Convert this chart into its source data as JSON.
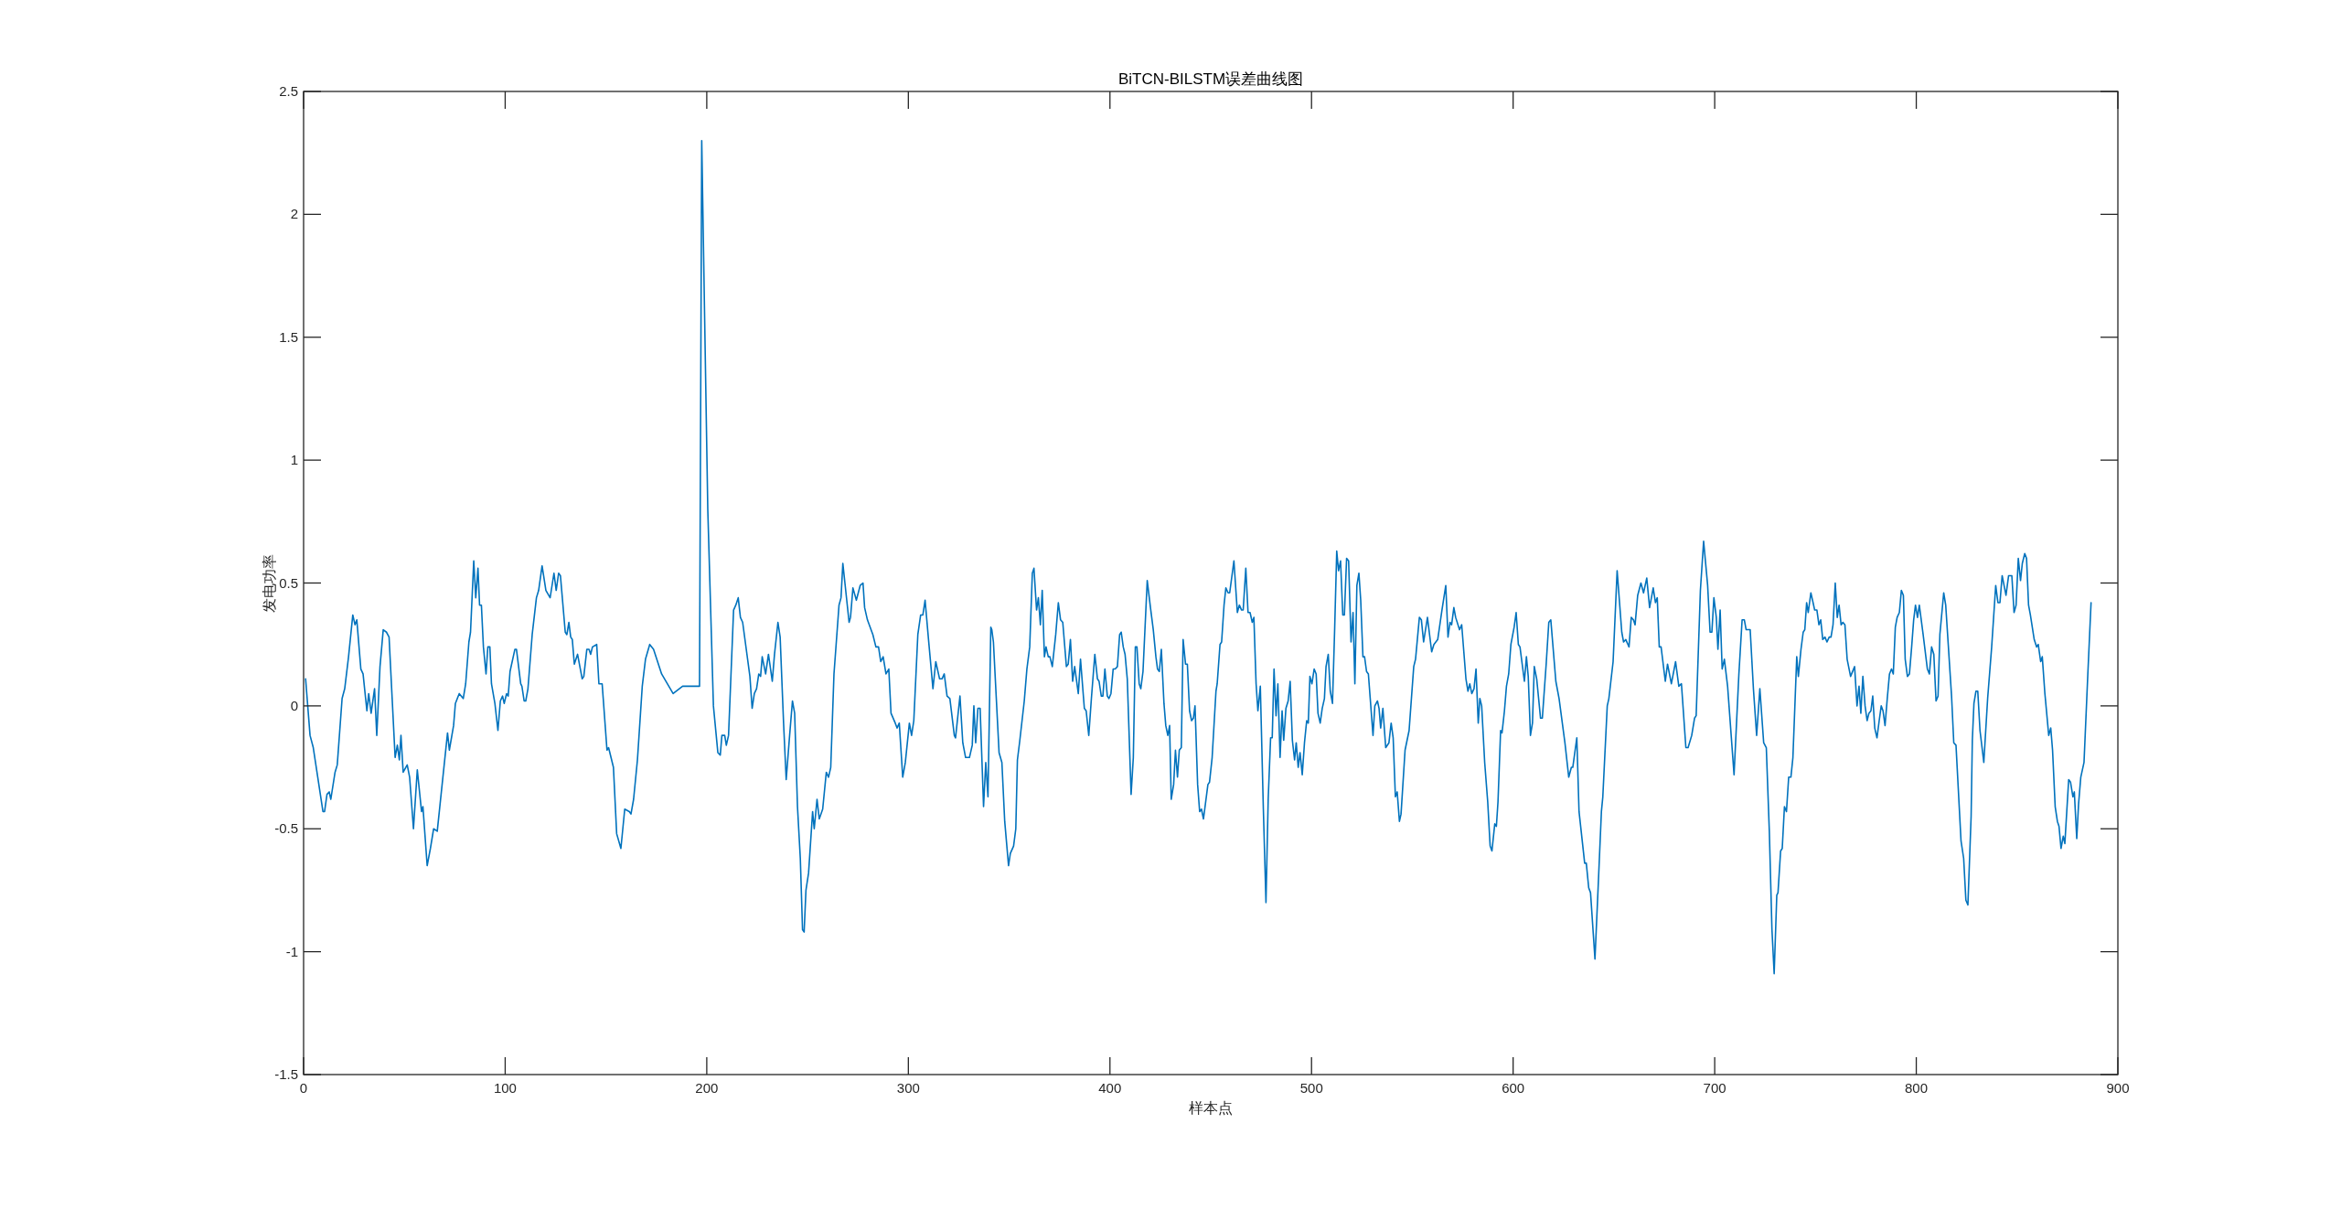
{
  "chart_data": {
    "type": "line",
    "title": "BiTCN-BILSTM误差曲线图",
    "xlabel": "样本点",
    "ylabel": "发电功率",
    "xlim": [
      0,
      900
    ],
    "ylim": [
      -1.5,
      2.5
    ],
    "xticks": [
      0,
      100,
      200,
      300,
      400,
      500,
      600,
      700,
      800,
      900
    ],
    "yticks": [
      -1.5,
      -1,
      -0.5,
      0,
      0.5,
      1,
      1.5,
      2,
      2.5
    ],
    "series": [
      {
        "color": "#0072bd",
        "x": [
          1,
          3.2,
          4.8,
          9.6,
          10.4,
          11.6,
          12.7,
          13.5,
          15.6,
          16.7,
          19.1,
          20.4,
          22.3,
          24.4,
          25.5,
          26.4,
          28.4,
          29.5,
          31.4,
          32.3,
          33.5,
          35.2,
          36.3,
          37.9,
          39.5,
          41.1,
          42.4,
          45.4,
          46.5,
          47.5,
          48.3,
          49.4,
          51.4,
          52.6,
          54.5,
          56.4,
          58.5,
          59.2,
          61.3,
          62.9,
          64.5,
          66.3,
          67.7,
          71.4,
          72.3,
          74.4,
          75.3,
          77.2,
          79.2,
          80.4,
          82,
          82.8,
          84.4,
          85.4,
          86.5,
          87.3,
          88.2,
          89.2,
          90.5,
          91.4,
          92.4,
          93.2,
          94.9,
          96.4,
          97.6,
          98.7,
          99.5,
          100.7,
          101.5,
          102.4,
          104.8,
          105.6,
          107.7,
          108.3,
          109.4,
          110.2,
          111.3,
          113.4,
          115.5,
          116.6,
          118.3,
          120.2,
          122.3,
          124.2,
          125.3,
          126.5,
          127.4,
          129.8,
          130.6,
          131.6,
          132.5,
          133.3,
          134.3,
          135.9,
          138.2,
          139,
          140.5,
          141.6,
          142.4,
          143.3,
          145.4,
          146.5,
          148.1,
          150.5,
          151.3,
          153.7,
          155.3,
          157.4,
          159.3,
          161.6,
          162.4,
          163.7,
          165.6,
          168,
          169.6,
          171.7,
          173.6,
          177.6,
          183.3,
          188,
          196.4,
          197.5,
          200.5,
          203.3,
          205.5,
          206.7,
          207.5,
          208.9,
          209.7,
          210.8,
          213.3,
          214.4,
          215.6,
          216.7,
          217.8,
          221.4,
          222.5,
          223.6,
          224.7,
          225.8,
          226.7,
          227.5,
          229.2,
          230.6,
          232.5,
          233.6,
          235.3,
          236.4,
          238.1,
          239.4,
          241.1,
          242.5,
          243.6,
          245,
          246.4,
          247.5,
          248.3,
          249.2,
          250.5,
          252.5,
          253.3,
          254.7,
          255.8,
          257.5,
          259.3,
          260.4,
          261.5,
          263.1,
          265.6,
          266.6,
          267.5,
          270.6,
          271.3,
          272.5,
          274.2,
          276.1,
          277.5,
          278.3,
          279.7,
          282.4,
          283.9,
          285.2,
          286.3,
          287.5,
          288.9,
          290.3,
          291.4,
          293.5,
          294.4,
          295.5,
          297.2,
          298.5,
          300.5,
          301.6,
          302.7,
          304.7,
          306.1,
          307.2,
          308.3,
          310,
          312.2,
          313.6,
          315.5,
          316.7,
          317.8,
          319.2,
          320.6,
          322.8,
          323.4,
          325.6,
          327,
          328.4,
          330.3,
          331.7,
          332.5,
          333.4,
          334.5,
          335.6,
          337.3,
          338.4,
          339.5,
          340.9,
          341.4,
          342.2,
          345,
          346.4,
          347.8,
          349.7,
          350.6,
          352.2,
          353.3,
          354.1,
          355.3,
          357.5,
          358.8,
          360.2,
          361.5,
          362.3,
          363.6,
          364.5,
          365.5,
          366.4,
          367.5,
          368.3,
          369.4,
          370.2,
          371.4,
          373.1,
          374.4,
          375.5,
          376.6,
          378.4,
          379.3,
          380.4,
          381.5,
          382.5,
          384.3,
          385.4,
          387.3,
          388.2,
          389.5,
          390.8,
          392.5,
          393.8,
          394.6,
          395.7,
          396.5,
          397.5,
          398.7,
          399.5,
          400.5,
          401.6,
          402.6,
          403.7,
          404.8,
          405.6,
          406.6,
          407.5,
          408.6,
          410.5,
          411.6,
          412.6,
          413.4,
          414.5,
          415.3,
          416.4,
          418.5,
          420.1,
          421.5,
          422.8,
          423.6,
          424.5,
          425.5,
          426.8,
          427.7,
          428.7,
          429.6,
          430.4,
          431.6,
          432.5,
          433.5,
          434.4,
          435.4,
          436.3,
          437.5,
          438.4,
          439.5,
          440.5,
          441.4,
          442.2,
          443.5,
          444.5,
          445.4,
          446.4,
          447.5,
          448.6,
          449.4,
          450.7,
          452.6,
          453.2,
          454.6,
          455.4,
          456.6,
          457.5,
          458.6,
          459.4,
          461.5,
          463.2,
          464.2,
          465.3,
          466.1,
          467.4,
          468.5,
          469.5,
          470.6,
          471.4,
          472.5,
          473.4,
          474.6,
          476.1,
          477.4,
          478.5,
          479.7,
          480.5,
          481.4,
          482.4,
          483.3,
          484.4,
          485.4,
          486.2,
          487.3,
          488.4,
          489.4,
          490.5,
          491.6,
          492.4,
          493.4,
          494.3,
          495.4,
          496.5,
          497.6,
          498.4,
          499.2,
          500.2,
          501.3,
          502.3,
          503.2,
          504.3,
          505.3,
          506.4,
          507.2,
          508.3,
          509.3,
          510.4,
          511.5,
          512.5,
          513.4,
          514.4,
          515.5,
          516.3,
          517.4,
          518.4,
          519.6,
          520.6,
          521.5,
          522.5,
          523.5,
          524.4,
          525.5,
          526.3,
          527.3,
          528.2,
          530.5,
          531.4,
          532.7,
          533.5,
          534.3,
          535.4,
          536.8,
          538.4,
          539.5,
          540.5,
          541.6,
          542.5,
          543.6,
          544.4,
          546.4,
          548.4,
          550.7,
          551.6,
          553.5,
          554.5,
          555.6,
          557.5,
          559.6,
          560.7,
          562.6,
          564.7,
          566.6,
          567.7,
          568.7,
          569.5,
          570.6,
          571.5,
          573.4,
          574.5,
          576.6,
          577.6,
          578.5,
          579.5,
          580.6,
          581.6,
          582.7,
          583.5,
          584.4,
          585.9,
          587.4,
          588.6,
          589.5,
          590.9,
          591.7,
          592.5,
          593.8,
          594.5,
          595.7,
          596.7,
          597.8,
          598.9,
          600.5,
          601.5,
          602.6,
          603.4,
          605.6,
          606.6,
          607.5,
          608.6,
          609.6,
          610.5,
          611.7,
          613.6,
          614.5,
          616.4,
          617.7,
          618.7,
          621.2,
          622.8,
          625.7,
          627.6,
          628.9,
          629.6,
          631.6,
          632.7,
          635.5,
          636.3,
          637.5,
          638.4,
          640.6,
          641.9,
          643.8,
          644.5,
          646.7,
          647.5,
          649.6,
          651.6,
          653.9,
          654.8,
          655.9,
          657.5,
          658.6,
          659.7,
          660.5,
          661.8,
          663.4,
          664.7,
          666.3,
          667.7,
          669.5,
          670.6,
          671.5,
          672.5,
          673.4,
          675.5,
          676.6,
          678.5,
          680.6,
          682.2,
          683.5,
          685.7,
          686.8,
          688.6,
          690,
          690.8,
          692.9,
          694.5,
          696.5,
          697.7,
          698.6,
          699.6,
          700.8,
          701.6,
          702.7,
          703.7,
          704.8,
          706.4,
          709.6,
          712,
          713.6,
          714.7,
          715.6,
          717.6,
          719.2,
          720.8,
          722.4,
          724.3,
          725.6,
          727.1,
          728.4,
          729.5,
          730.8,
          731.4,
          732.7,
          733.5,
          734.6,
          735.6,
          736.7,
          737.8,
          738.8,
          740.7,
          741.5,
          742.8,
          743.9,
          744.7,
          745.6,
          746.4,
          747.7,
          748.8,
          749.6,
          750.7,
          751.7,
          752.6,
          753.6,
          754.7,
          755.7,
          756.8,
          757.7,
          758.7,
          759.8,
          760.8,
          761.7,
          762.7,
          763.6,
          764.6,
          765.7,
          767.4,
          769.4,
          770.6,
          771.6,
          772.5,
          773.5,
          774.6,
          775.6,
          776.5,
          777.5,
          778.4,
          779.4,
          780.5,
          781.6,
          782.6,
          783.5,
          784.5,
          785.6,
          786.7,
          787.7,
          788.6,
          789.6,
          790.5,
          791.6,
          792.6,
          793.6,
          794.5,
          795.6,
          796.6,
          797.7,
          798.7,
          799.6,
          800.6,
          801.5,
          803.4,
          805.5,
          806.5,
          807.6,
          808.7,
          809.8,
          810.8,
          811.7,
          813.6,
          814.6,
          817.5,
          818.6,
          819.7,
          822.2,
          823.5,
          824.6,
          825.6,
          827.2,
          827.8,
          828.6,
          829.6,
          830.5,
          831.6,
          833.5,
          835.4,
          837.4,
          839.4,
          840.5,
          841.5,
          842.6,
          844.5,
          845.8,
          847.4,
          848.5,
          849.5,
          850.6,
          851.7,
          852.6,
          853.8,
          854.7,
          855.7,
          856.6,
          858.5,
          859.7,
          860.5,
          861.7,
          862.5,
          863.8,
          865.7,
          866.7,
          867.6,
          868.9,
          870,
          870.8,
          871.8,
          872.9,
          873.7,
          875.6,
          876.5,
          877.7,
          878.4,
          879.6,
          880.5,
          881.6,
          883.2,
          885.1,
          886.7
        ],
        "values": [
          0.11,
          -0.12,
          -0.17,
          -0.43,
          -0.43,
          -0.36,
          -0.35,
          -0.38,
          -0.27,
          -0.24,
          0.03,
          0.07,
          0.2,
          0.37,
          0.33,
          0.35,
          0.15,
          0.13,
          -0.02,
          0.05,
          -0.03,
          0.07,
          -0.12,
          0.16,
          0.31,
          0.3,
          0.28,
          -0.21,
          -0.16,
          -0.22,
          -0.12,
          -0.27,
          -0.24,
          -0.29,
          -0.5,
          -0.26,
          -0.43,
          -0.41,
          -0.65,
          -0.58,
          -0.5,
          -0.51,
          -0.4,
          -0.11,
          -0.18,
          -0.08,
          0.01,
          0.05,
          0.03,
          0.09,
          0.26,
          0.3,
          0.59,
          0.44,
          0.56,
          0.41,
          0.41,
          0.24,
          0.13,
          0.24,
          0.24,
          0.09,
          0.01,
          -0.1,
          0.02,
          0.04,
          0.01,
          0.05,
          0.04,
          0.14,
          0.23,
          0.23,
          0.09,
          0.08,
          0.02,
          0.02,
          0.07,
          0.29,
          0.44,
          0.47,
          0.57,
          0.47,
          0.44,
          0.54,
          0.47,
          0.54,
          0.53,
          0.3,
          0.29,
          0.34,
          0.28,
          0.27,
          0.17,
          0.21,
          0.11,
          0.12,
          0.23,
          0.23,
          0.21,
          0.24,
          0.25,
          0.09,
          0.09,
          -0.18,
          -0.17,
          -0.25,
          -0.52,
          -0.58,
          -0.42,
          -0.43,
          -0.44,
          -0.38,
          -0.22,
          0.08,
          0.19,
          0.25,
          0.23,
          0.13,
          0.05,
          0.08,
          0.08,
          2.3,
          0.8,
          0,
          -0.19,
          -0.2,
          -0.12,
          -0.12,
          -0.16,
          -0.12,
          0.39,
          0.41,
          0.44,
          0.36,
          0.34,
          0.12,
          -0.01,
          0.05,
          0.07,
          0.13,
          0.12,
          0.2,
          0.13,
          0.21,
          0.1,
          0.21,
          0.34,
          0.28,
          -0.07,
          -0.3,
          -0.12,
          0.02,
          -0.03,
          -0.41,
          -0.62,
          -0.91,
          -0.92,
          -0.75,
          -0.68,
          -0.43,
          -0.5,
          -0.38,
          -0.46,
          -0.42,
          -0.27,
          -0.29,
          -0.25,
          0.13,
          0.41,
          0.44,
          0.58,
          0.34,
          0.36,
          0.48,
          0.43,
          0.49,
          0.5,
          0.4,
          0.35,
          0.29,
          0.24,
          0.24,
          0.18,
          0.2,
          0.13,
          0.15,
          -0.03,
          -0.07,
          -0.09,
          -0.07,
          -0.29,
          -0.23,
          -0.07,
          -0.12,
          -0.06,
          0.29,
          0.37,
          0.37,
          0.43,
          0.27,
          0.07,
          0.18,
          0.11,
          0.11,
          0.13,
          0.04,
          0.03,
          -0.12,
          -0.13,
          0.04,
          -0.15,
          -0.21,
          -0.21,
          -0.16,
          0,
          -0.15,
          -0.01,
          -0.01,
          -0.41,
          -0.23,
          -0.37,
          0.32,
          0.31,
          0.26,
          -0.19,
          -0.23,
          -0.47,
          -0.65,
          -0.6,
          -0.57,
          -0.5,
          -0.22,
          -0.14,
          0.02,
          0.15,
          0.24,
          0.54,
          0.56,
          0.39,
          0.44,
          0.33,
          0.47,
          0.2,
          0.24,
          0.2,
          0.2,
          0.16,
          0.29,
          0.42,
          0.35,
          0.34,
          0.16,
          0.17,
          0.27,
          0.1,
          0.16,
          0.05,
          0.19,
          -0.01,
          -0.02,
          -0.12,
          0.03,
          0.21,
          0.11,
          0.1,
          0.04,
          0.04,
          0.15,
          0.04,
          0.03,
          0.05,
          0.15,
          0.15,
          0.16,
          0.29,
          0.3,
          0.24,
          0.21,
          0.11,
          -0.36,
          -0.21,
          0.24,
          0.24,
          0.09,
          0.07,
          0.14,
          0.51,
          0.4,
          0.31,
          0.2,
          0.15,
          0.14,
          0.23,
          0.01,
          -0.08,
          -0.12,
          -0.08,
          -0.38,
          -0.32,
          -0.18,
          -0.29,
          -0.18,
          -0.17,
          0.27,
          0.17,
          0.17,
          -0.02,
          -0.06,
          -0.05,
          0,
          -0.32,
          -0.43,
          -0.42,
          -0.46,
          -0.39,
          -0.32,
          -0.31,
          -0.21,
          0.06,
          0.09,
          0.25,
          0.26,
          0.41,
          0.48,
          0.46,
          0.46,
          0.59,
          0.38,
          0.41,
          0.39,
          0.39,
          0.56,
          0.38,
          0.38,
          0.34,
          0.36,
          0.09,
          -0.02,
          0.08,
          -0.42,
          -0.8,
          -0.38,
          -0.13,
          -0.13,
          0.15,
          -0.04,
          0.09,
          -0.21,
          -0.02,
          -0.14,
          -0.01,
          0.02,
          0.1,
          -0.14,
          -0.22,
          -0.15,
          -0.25,
          -0.19,
          -0.28,
          -0.15,
          -0.06,
          -0.07,
          0.12,
          0.09,
          0.15,
          0.13,
          -0.03,
          -0.07,
          -0.01,
          0.03,
          0.16,
          0.21,
          0.06,
          0.01,
          0.32,
          0.63,
          0.55,
          0.59,
          0.37,
          0.37,
          0.6,
          0.59,
          0.26,
          0.38,
          0.09,
          0.49,
          0.54,
          0.43,
          0.2,
          0.2,
          0.14,
          0.13,
          -0.12,
          0,
          0.02,
          -0.01,
          -0.09,
          -0.01,
          -0.17,
          -0.15,
          -0.07,
          -0.13,
          -0.37,
          -0.35,
          -0.47,
          -0.44,
          -0.18,
          -0.1,
          0.16,
          0.19,
          0.36,
          0.35,
          0.26,
          0.36,
          0.22,
          0.25,
          0.27,
          0.39,
          0.49,
          0.28,
          0.34,
          0.33,
          0.4,
          0.36,
          0.31,
          0.33,
          0.11,
          0.06,
          0.09,
          0.05,
          0.07,
          0.15,
          -0.07,
          0.03,
          0,
          -0.23,
          -0.39,
          -0.57,
          -0.59,
          -0.48,
          -0.49,
          -0.39,
          -0.1,
          -0.11,
          -0.02,
          0.08,
          0.13,
          0.25,
          0.32,
          0.38,
          0.25,
          0.24,
          0.1,
          0.2,
          0.12,
          -0.12,
          -0.07,
          0.16,
          0.11,
          -0.05,
          -0.05,
          0.17,
          0.34,
          0.35,
          0.1,
          0.03,
          -0.15,
          -0.29,
          -0.25,
          -0.25,
          -0.13,
          -0.43,
          -0.64,
          -0.64,
          -0.74,
          -0.76,
          -1.03,
          -0.79,
          -0.43,
          -0.37,
          0,
          0.03,
          0.18,
          0.55,
          0.3,
          0.26,
          0.27,
          0.24,
          0.36,
          0.35,
          0.33,
          0.45,
          0.5,
          0.46,
          0.52,
          0.4,
          0.48,
          0.42,
          0.44,
          0.24,
          0.24,
          0.1,
          0.17,
          0.09,
          0.18,
          0.08,
          0.09,
          -0.17,
          -0.17,
          -0.12,
          -0.05,
          -0.04,
          0.47,
          0.67,
          0.49,
          0.3,
          0.3,
          0.44,
          0.36,
          0.23,
          0.39,
          0.15,
          0.19,
          0.08,
          -0.28,
          0.13,
          0.35,
          0.35,
          0.31,
          0.31,
          0.07,
          -0.12,
          0.07,
          -0.15,
          -0.17,
          -0.51,
          -0.91,
          -1.09,
          -0.77,
          -0.76,
          -0.59,
          -0.58,
          -0.41,
          -0.43,
          -0.29,
          -0.29,
          -0.21,
          0.2,
          0.12,
          0.23,
          0.3,
          0.31,
          0.42,
          0.38,
          0.46,
          0.42,
          0.39,
          0.39,
          0.33,
          0.35,
          0.27,
          0.28,
          0.26,
          0.28,
          0.28,
          0.33,
          0.5,
          0.36,
          0.41,
          0.33,
          0.34,
          0.33,
          0.19,
          0.12,
          0.16,
          0,
          0.08,
          -0.03,
          0.12,
          0,
          -0.06,
          -0.03,
          -0.02,
          0.04,
          -0.09,
          -0.13,
          -0.06,
          0,
          -0.02,
          -0.08,
          0.03,
          0.13,
          0.15,
          0.13,
          0.32,
          0.36,
          0.38,
          0.47,
          0.45,
          0.19,
          0.12,
          0.13,
          0.24,
          0.35,
          0.41,
          0.36,
          0.41,
          0.29,
          0.15,
          0.13,
          0.24,
          0.21,
          0.02,
          0.04,
          0.29,
          0.46,
          0.41,
          0.04,
          -0.15,
          -0.16,
          -0.55,
          -0.62,
          -0.79,
          -0.81,
          -0.45,
          -0.14,
          0.01,
          0.06,
          0.06,
          -0.1,
          -0.23,
          0.03,
          0.24,
          0.49,
          0.42,
          0.42,
          0.53,
          0.45,
          0.53,
          0.53,
          0.38,
          0.41,
          0.6,
          0.51,
          0.58,
          0.62,
          0.6,
          0.41,
          0.37,
          0.27,
          0.24,
          0.25,
          0.18,
          0.2,
          0.05,
          -0.12,
          -0.09,
          -0.18,
          -0.41,
          -0.47,
          -0.49,
          -0.58,
          -0.53,
          -0.56,
          -0.3,
          -0.31,
          -0.37,
          -0.35,
          -0.54,
          -0.4,
          -0.29,
          -0.23,
          0.13,
          0.42
        ]
      }
    ]
  }
}
